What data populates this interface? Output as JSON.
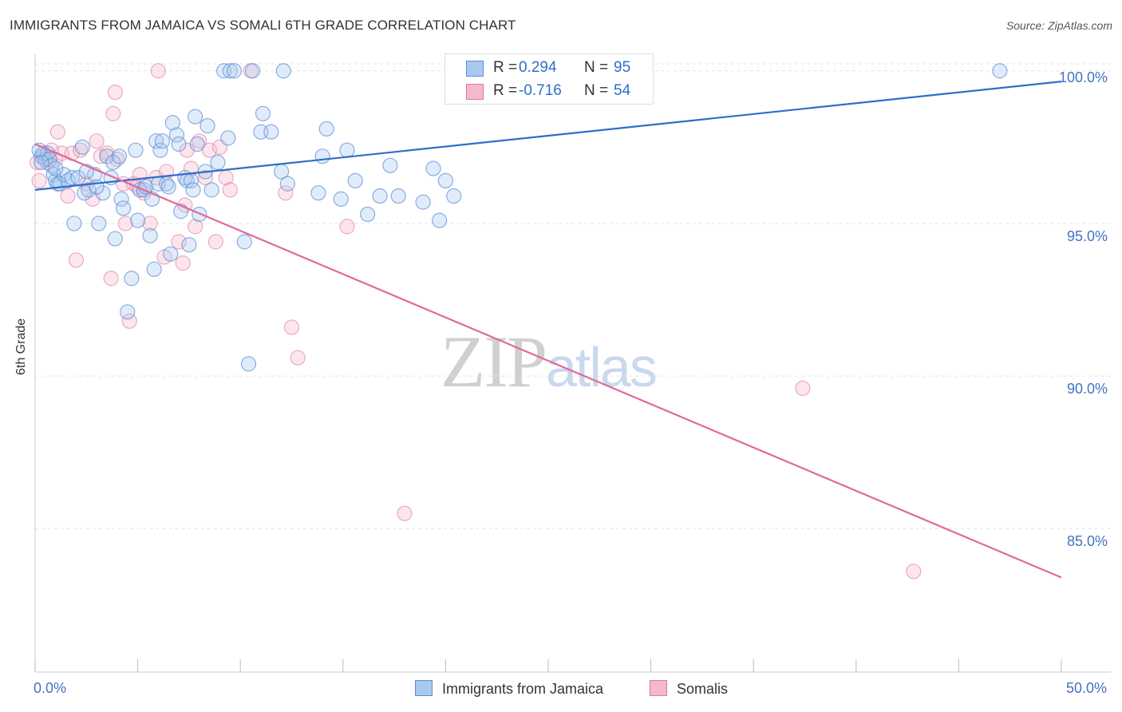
{
  "header": {
    "title": "IMMIGRANTS FROM JAMAICA VS SOMALI 6TH GRADE CORRELATION CHART",
    "source": "Source: ZipAtlas.com"
  },
  "watermark": {
    "part1": "ZIP",
    "part2": "atlas"
  },
  "legend": {
    "r_label": "R =",
    "n_label": "N =",
    "series": [
      {
        "r": "0.294",
        "n": "95"
      },
      {
        "r": "-0.716",
        "n": "54"
      }
    ]
  },
  "colors": {
    "jamaica_fill": "#a9c8f0",
    "jamaica_stroke": "#5b8fd6",
    "jamaica_line": "#2e6ec9",
    "somali_fill": "#f6b8cc",
    "somali_stroke": "#e0789c",
    "somali_line": "#e0699a",
    "tick_text": "#4472c4"
  },
  "chart_data": {
    "type": "scatter",
    "title": "IMMIGRANTS FROM JAMAICA VS SOMALI 6TH GRADE CORRELATION CHART",
    "xlabel": "",
    "ylabel": "6th Grade",
    "xlim": [
      0,
      50
    ],
    "ylim": [
      80.3,
      100.7
    ],
    "x_tick_labels": [
      "0.0%",
      "50.0%"
    ],
    "y_ticks": [
      85,
      90,
      95,
      100
    ],
    "y_tick_labels": [
      "85.0%",
      "90.0%",
      "95.0%",
      "100.0%"
    ],
    "grid": true,
    "legend_position": "top-center",
    "series": [
      {
        "name": "Immigrants from Jamaica",
        "trend": {
          "x": [
            0,
            50
          ],
          "y": [
            96.1,
            99.65
          ]
        },
        "points": [
          [
            0.3,
            97.2
          ],
          [
            0.4,
            97.3
          ],
          [
            0.5,
            97.1
          ],
          [
            0.6,
            97.3
          ],
          [
            0.7,
            97.1
          ],
          [
            0.8,
            96.9
          ],
          [
            0.9,
            96.6
          ],
          [
            1.0,
            96.4
          ],
          [
            1.1,
            96.3
          ],
          [
            1.2,
            96.3
          ],
          [
            1.4,
            96.6
          ],
          [
            1.6,
            96.4
          ],
          [
            1.8,
            96.5
          ],
          [
            1.9,
            95.0
          ],
          [
            2.1,
            96.5
          ],
          [
            2.3,
            97.5
          ],
          [
            2.4,
            96.0
          ],
          [
            2.6,
            96.1
          ],
          [
            2.9,
            96.6
          ],
          [
            3.1,
            95.0
          ],
          [
            3.3,
            96.0
          ],
          [
            3.5,
            97.2
          ],
          [
            3.7,
            96.5
          ],
          [
            3.8,
            97.0
          ],
          [
            3.9,
            94.5
          ],
          [
            4.1,
            97.2
          ],
          [
            4.2,
            95.8
          ],
          [
            4.3,
            95.5
          ],
          [
            4.5,
            92.1
          ],
          [
            4.7,
            93.2
          ],
          [
            4.9,
            97.4
          ],
          [
            5.0,
            95.1
          ],
          [
            5.1,
            96.1
          ],
          [
            5.3,
            96.1
          ],
          [
            5.4,
            96.2
          ],
          [
            5.6,
            94.6
          ],
          [
            5.7,
            95.8
          ],
          [
            5.8,
            93.5
          ],
          [
            5.9,
            97.7
          ],
          [
            6.0,
            96.3
          ],
          [
            6.1,
            97.4
          ],
          [
            6.2,
            97.7
          ],
          [
            6.4,
            96.3
          ],
          [
            6.5,
            96.2
          ],
          [
            6.6,
            94.0
          ],
          [
            6.7,
            98.3
          ],
          [
            6.9,
            97.9
          ],
          [
            7.0,
            97.6
          ],
          [
            7.1,
            95.4
          ],
          [
            7.3,
            96.5
          ],
          [
            7.4,
            96.4
          ],
          [
            7.5,
            94.3
          ],
          [
            7.6,
            96.4
          ],
          [
            7.7,
            96.1
          ],
          [
            7.8,
            98.5
          ],
          [
            7.9,
            97.6
          ],
          [
            8.0,
            95.3
          ],
          [
            8.3,
            96.7
          ],
          [
            8.4,
            98.2
          ],
          [
            8.6,
            96.1
          ],
          [
            8.9,
            97.0
          ],
          [
            9.2,
            100.0
          ],
          [
            9.4,
            97.8
          ],
          [
            9.5,
            100.0
          ],
          [
            9.7,
            100.0
          ],
          [
            10.2,
            94.4
          ],
          [
            10.4,
            90.4
          ],
          [
            10.6,
            100.0
          ],
          [
            11.0,
            98.0
          ],
          [
            11.1,
            98.6
          ],
          [
            11.5,
            98.0
          ],
          [
            12.0,
            96.7
          ],
          [
            12.1,
            100.0
          ],
          [
            12.3,
            96.3
          ],
          [
            13.8,
            96.0
          ],
          [
            14.0,
            97.2
          ],
          [
            14.2,
            98.1
          ],
          [
            14.9,
            95.8
          ],
          [
            15.2,
            97.4
          ],
          [
            15.6,
            96.4
          ],
          [
            16.2,
            95.3
          ],
          [
            16.8,
            95.9
          ],
          [
            17.3,
            96.9
          ],
          [
            17.7,
            95.9
          ],
          [
            18.9,
            95.7
          ],
          [
            19.4,
            96.8
          ],
          [
            19.7,
            95.1
          ],
          [
            20.0,
            96.4
          ],
          [
            20.4,
            95.9
          ],
          [
            47.0,
            100.0
          ],
          [
            0.2,
            97.4
          ],
          [
            0.3,
            97.0
          ],
          [
            1.0,
            96.8
          ],
          [
            2.5,
            96.7
          ],
          [
            3.0,
            96.2
          ]
        ]
      },
      {
        "name": "Somalis",
        "trend": {
          "x": [
            0,
            50
          ],
          "y": [
            97.6,
            83.4
          ]
        },
        "points": [
          [
            0.2,
            96.4
          ],
          [
            0.4,
            97.2
          ],
          [
            0.6,
            97.0
          ],
          [
            0.8,
            97.4
          ],
          [
            1.0,
            97.1
          ],
          [
            1.1,
            98.0
          ],
          [
            1.3,
            97.3
          ],
          [
            1.6,
            95.9
          ],
          [
            1.8,
            97.3
          ],
          [
            2.0,
            93.8
          ],
          [
            2.2,
            97.4
          ],
          [
            2.5,
            96.3
          ],
          [
            2.8,
            95.8
          ],
          [
            3.0,
            97.7
          ],
          [
            3.2,
            97.2
          ],
          [
            3.5,
            97.3
          ],
          [
            3.7,
            93.2
          ],
          [
            3.8,
            98.6
          ],
          [
            3.9,
            99.3
          ],
          [
            4.0,
            97.1
          ],
          [
            4.3,
            96.3
          ],
          [
            4.4,
            95.0
          ],
          [
            4.6,
            91.8
          ],
          [
            4.8,
            96.3
          ],
          [
            5.0,
            96.2
          ],
          [
            5.1,
            96.6
          ],
          [
            5.3,
            96.0
          ],
          [
            5.6,
            95.0
          ],
          [
            5.9,
            96.5
          ],
          [
            6.3,
            93.9
          ],
          [
            6.4,
            96.7
          ],
          [
            7.0,
            94.4
          ],
          [
            7.2,
            93.7
          ],
          [
            7.3,
            95.6
          ],
          [
            7.4,
            97.4
          ],
          [
            7.6,
            96.8
          ],
          [
            7.8,
            94.9
          ],
          [
            8.0,
            97.7
          ],
          [
            8.3,
            96.5
          ],
          [
            8.5,
            97.4
          ],
          [
            8.8,
            94.4
          ],
          [
            9.0,
            97.5
          ],
          [
            9.3,
            96.5
          ],
          [
            9.5,
            96.1
          ],
          [
            6.0,
            100.0
          ],
          [
            10.5,
            100.0
          ],
          [
            12.2,
            96.0
          ],
          [
            12.5,
            91.6
          ],
          [
            12.8,
            90.6
          ],
          [
            15.2,
            94.9
          ],
          [
            18.0,
            85.5
          ],
          [
            37.4,
            89.6
          ],
          [
            42.8,
            83.6
          ],
          [
            0.1,
            97.0
          ]
        ]
      }
    ]
  },
  "bottom_legend": {
    "jamaica": "Immigrants from Jamaica",
    "somali": "Somalis"
  }
}
